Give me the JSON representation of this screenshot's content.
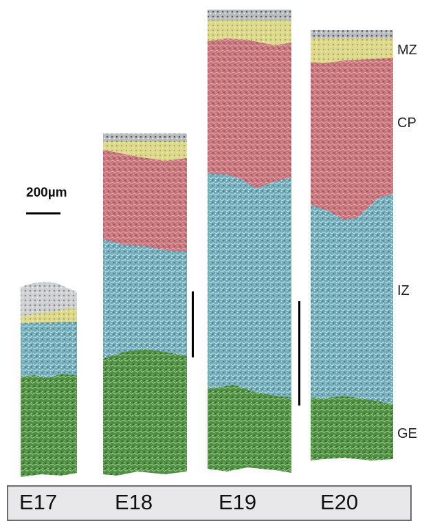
{
  "zone_labels": {
    "mz": "MZ",
    "cp": "CP",
    "iz": "IZ",
    "ge": "GE"
  },
  "scale_bar": {
    "label": "200µm"
  },
  "ages": [
    "E17",
    "E18",
    "E19",
    "E20"
  ],
  "colors": {
    "marginal_zone": "#d9d78a",
    "cortical_plate": "#c9787f",
    "intermediate_zone": "#72aab8",
    "ganglionic_eminence": "#4e8f40",
    "age_strip_background": "#e8e8ea"
  }
}
